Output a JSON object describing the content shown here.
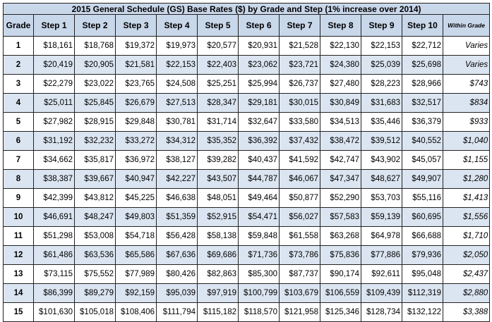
{
  "table": {
    "title": "2015 General Schedule (GS) Base Rates ($) by Grade and Step (1% increase over 2014)",
    "headers": [
      "Grade",
      "Step 1",
      "Step 2",
      "Step 3",
      "Step 4",
      "Step 5",
      "Step 6",
      "Step 7",
      "Step 8",
      "Step 9",
      "Step 10",
      "Within Grade"
    ],
    "rows": [
      [
        "1",
        "$18,161",
        "$18,768",
        "$19,372",
        "$19,973",
        "$20,577",
        "$20,931",
        "$21,528",
        "$22,130",
        "$22,153",
        "$22,712",
        "Varies"
      ],
      [
        "2",
        "$20,419",
        "$20,905",
        "$21,581",
        "$22,153",
        "$22,403",
        "$23,062",
        "$23,721",
        "$24,380",
        "$25,039",
        "$25,698",
        "Varies"
      ],
      [
        "3",
        "$22,279",
        "$23,022",
        "$23,765",
        "$24,508",
        "$25,251",
        "$25,994",
        "$26,737",
        "$27,480",
        "$28,223",
        "$28,966",
        "$743"
      ],
      [
        "4",
        "$25,011",
        "$25,845",
        "$26,679",
        "$27,513",
        "$28,347",
        "$29,181",
        "$30,015",
        "$30,849",
        "$31,683",
        "$32,517",
        "$834"
      ],
      [
        "5",
        "$27,982",
        "$28,915",
        "$29,848",
        "$30,781",
        "$31,714",
        "$32,647",
        "$33,580",
        "$34,513",
        "$35,446",
        "$36,379",
        "$933"
      ],
      [
        "6",
        "$31,192",
        "$32,232",
        "$33,272",
        "$34,312",
        "$35,352",
        "$36,392",
        "$37,432",
        "$38,472",
        "$39,512",
        "$40,552",
        "$1,040"
      ],
      [
        "7",
        "$34,662",
        "$35,817",
        "$36,972",
        "$38,127",
        "$39,282",
        "$40,437",
        "$41,592",
        "$42,747",
        "$43,902",
        "$45,057",
        "$1,155"
      ],
      [
        "8",
        "$38,387",
        "$39,667",
        "$40,947",
        "$42,227",
        "$43,507",
        "$44,787",
        "$46,067",
        "$47,347",
        "$48,627",
        "$49,907",
        "$1,280"
      ],
      [
        "9",
        "$42,399",
        "$43,812",
        "$45,225",
        "$46,638",
        "$48,051",
        "$49,464",
        "$50,877",
        "$52,290",
        "$53,703",
        "$55,116",
        "$1,413"
      ],
      [
        "10",
        "$46,691",
        "$48,247",
        "$49,803",
        "$51,359",
        "$52,915",
        "$54,471",
        "$56,027",
        "$57,583",
        "$59,139",
        "$60,695",
        "$1,556"
      ],
      [
        "11",
        "$51,298",
        "$53,008",
        "$54,718",
        "$56,428",
        "$58,138",
        "$59,848",
        "$61,558",
        "$63,268",
        "$64,978",
        "$66,688",
        "$1,710"
      ],
      [
        "12",
        "$61,486",
        "$63,536",
        "$65,586",
        "$67,636",
        "$69,686",
        "$71,736",
        "$73,786",
        "$75,836",
        "$77,886",
        "$79,936",
        "$2,050"
      ],
      [
        "13",
        "$73,115",
        "$75,552",
        "$77,989",
        "$80,426",
        "$82,863",
        "$85,300",
        "$87,737",
        "$90,174",
        "$92,611",
        "$95,048",
        "$2,437"
      ],
      [
        "14",
        "$86,399",
        "$89,279",
        "$92,159",
        "$95,039",
        "$97,919",
        "$100,799",
        "$103,679",
        "$106,559",
        "$109,439",
        "$112,319",
        "$2,880"
      ],
      [
        "15",
        "$101,630",
        "$105,018",
        "$108,406",
        "$111,794",
        "$115,182",
        "$118,570",
        "$121,958",
        "$125,346",
        "$128,734",
        "$132,122",
        "$3,388"
      ]
    ]
  }
}
